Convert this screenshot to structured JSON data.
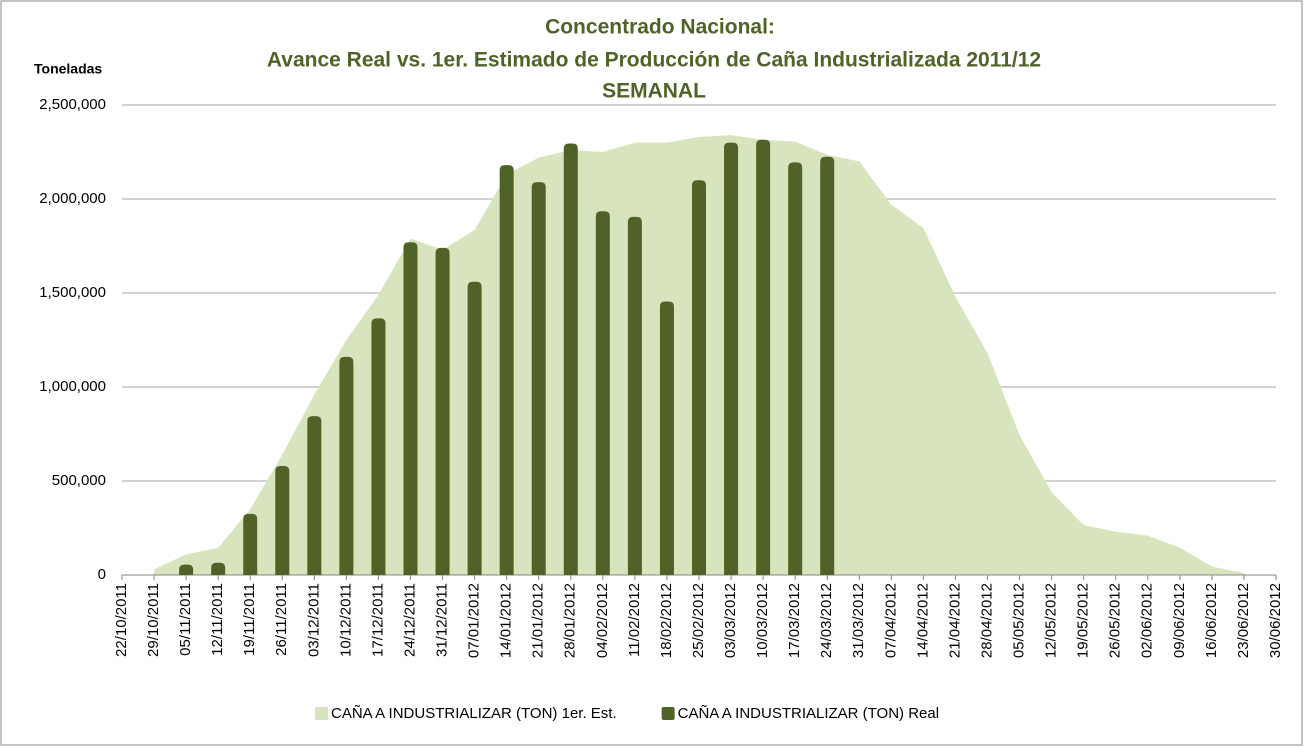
{
  "chart_data": {
    "type": "bar-area",
    "title": "Concentrado Nacional:",
    "subtitle": "Avance Real vs. 1er. Estimado de Producción de Caña Industrializada 2011/12",
    "subtitle2": "SEMANAL",
    "y_label": "Toneladas",
    "categories": [
      "22/10/2011",
      "29/10/2011",
      "05/11/2011",
      "12/11/2011",
      "19/11/2011",
      "26/11/2011",
      "03/12/2011",
      "10/12/2011",
      "17/12/2011",
      "24/12/2011",
      "31/12/2011",
      "07/01/2012",
      "14/01/2012",
      "21/01/2012",
      "28/01/2012",
      "04/02/2012",
      "11/02/2012",
      "18/02/2012",
      "25/02/2012",
      "03/03/2012",
      "10/03/2012",
      "17/03/2012",
      "24/03/2012",
      "31/03/2012",
      "07/04/2012",
      "14/04/2012",
      "21/04/2012",
      "28/04/2012",
      "05/05/2012",
      "12/05/2012",
      "19/05/2012",
      "26/05/2012",
      "02/06/2012",
      "09/06/2012",
      "16/06/2012",
      "23/06/2012",
      "30/06/2012"
    ],
    "series": [
      {
        "name": "CAÑA A INDUSTRIALIZAR (TON) 1er. Est.",
        "type": "area",
        "color": "#d7e4bd",
        "values": [
          null,
          30000,
          110000,
          145000,
          350000,
          640000,
          960000,
          1250000,
          1490000,
          1790000,
          1730000,
          1835000,
          2130000,
          2220000,
          2260000,
          2250000,
          2300000,
          2300000,
          2330000,
          2340000,
          2315000,
          2305000,
          2235000,
          2200000,
          1970000,
          1845000,
          1480000,
          1180000,
          745000,
          440000,
          265000,
          230000,
          210000,
          145000,
          45000,
          10000,
          null
        ]
      },
      {
        "name": "CAÑA A INDUSTRIALIZAR (TON) Real",
        "type": "bar",
        "color": "#4f6228",
        "values": [
          null,
          null,
          55000,
          65000,
          325000,
          580000,
          845000,
          1160000,
          1365000,
          1770000,
          1740000,
          1560000,
          2180000,
          2090000,
          2295000,
          1935000,
          1905000,
          1455000,
          2100000,
          2300000,
          2315000,
          2195000,
          2225000,
          null,
          null,
          null,
          null,
          null,
          null,
          null,
          null,
          null,
          null,
          null,
          null,
          null,
          null
        ]
      }
    ],
    "ylim": [
      0,
      2500000
    ],
    "yticks": [
      0,
      {
        "value": 500000,
        "label": "500,000"
      },
      {
        "value": 1000000,
        "label": "1,000,000"
      },
      {
        "value": 1500000,
        "label": "1,500,000"
      },
      {
        "value": 2000000,
        "label": "2,000,000"
      },
      {
        "value": 2500000,
        "label": "2,500,000"
      }
    ],
    "grid": true,
    "legend": "bottom"
  }
}
